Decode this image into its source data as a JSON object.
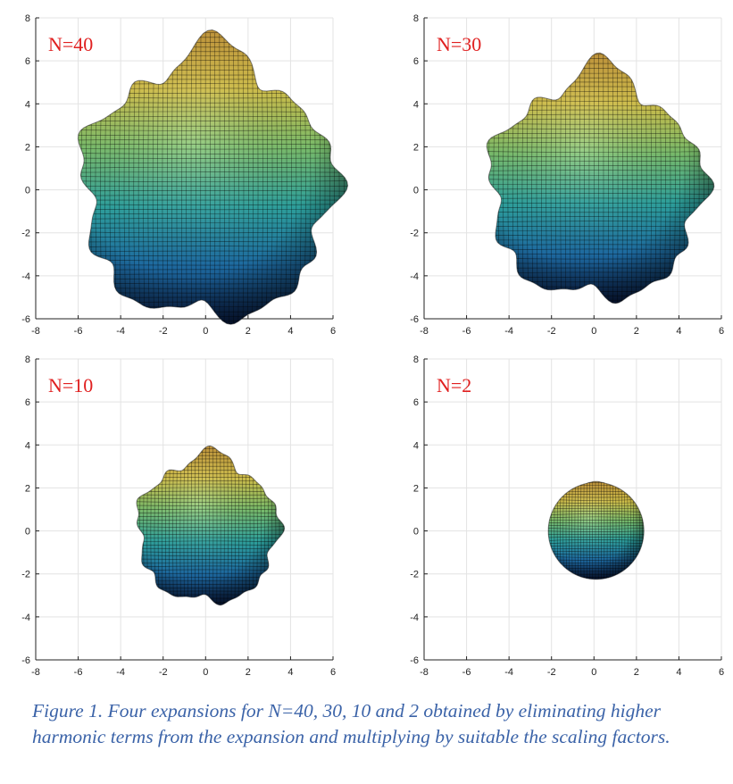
{
  "figure": {
    "panels": [
      {
        "label": "N=40",
        "radius": 5.9,
        "bump": 1.0,
        "tip": 7.1
      },
      {
        "label": "N=30",
        "radius": 5.0,
        "bump": 0.8,
        "tip": 6.1
      },
      {
        "label": "N=10",
        "radius": 3.3,
        "bump": 0.45,
        "tip": 3.8
      },
      {
        "label": "N=2",
        "radius": 2.25,
        "bump": 0.0,
        "tip": 2.3
      }
    ],
    "x_ticks": [
      "-8",
      "-6",
      "-4",
      "-2",
      "0",
      "2",
      "4",
      "6"
    ],
    "y_ticks": [
      "8",
      "6",
      "4",
      "2",
      "0",
      "-2",
      "-4",
      "-6"
    ],
    "xlim": [
      -8,
      6
    ],
    "ylim": [
      -6,
      8
    ],
    "grid": true,
    "label_color": "#e02020",
    "colormap": [
      "#0b2150",
      "#1f6fa8",
      "#2fa7a3",
      "#7ec46f",
      "#d9c64a",
      "#c99a3c"
    ]
  },
  "caption": "Figure 1. Four expansions for N=40, 30, 10 and 2 obtained by eliminating higher harmonic terms from the expansion and multiplying by suitable the scaling factors."
}
